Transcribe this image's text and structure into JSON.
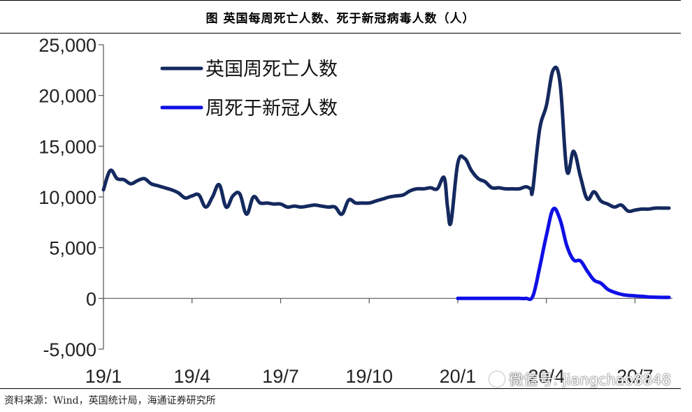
{
  "title": "图  英国每周死亡人数、死于新冠病毒人数（人）",
  "source": "资料来源：Wind，英国统计局，海通证券研究所",
  "watermark": "微信号: jiangchao8848",
  "chart_data": {
    "type": "line",
    "title": "图  英国每周死亡人数、死于新冠病毒人数（人）",
    "xlabel": "",
    "ylabel": "",
    "ylim": [
      -5000,
      25000
    ],
    "yticks": [
      -5000,
      0,
      5000,
      10000,
      15000,
      20000,
      25000
    ],
    "ytick_labels": [
      "-5,000",
      "0",
      "5,000",
      "10,000",
      "15,000",
      "20,000",
      "25,000"
    ],
    "xlim": [
      0,
      83.5
    ],
    "xticks": [
      0,
      13,
      26,
      39,
      52,
      65,
      78
    ],
    "xtick_labels": [
      "19/1",
      "19/4",
      "19/7",
      "19/10",
      "20/1",
      "20/4",
      "20/7"
    ],
    "x_unit": "weeks since 2019-01",
    "grid": false,
    "legend_position": "top-left",
    "series": [
      {
        "name": "英国周死亡人数",
        "color": "#14295e",
        "x": [
          0,
          1,
          2,
          3,
          4,
          5,
          6,
          7,
          8,
          9,
          10,
          11,
          12,
          13,
          14,
          15,
          16,
          17,
          18,
          19,
          20,
          21,
          22,
          23,
          24,
          25,
          26,
          27,
          28,
          29,
          30,
          31,
          32,
          33,
          34,
          35,
          36,
          37,
          38,
          39,
          40,
          41,
          42,
          43,
          44,
          45,
          46,
          47,
          48,
          49,
          50,
          50.5,
          51,
          52,
          53,
          54,
          55,
          56,
          57,
          58,
          59,
          60,
          61,
          62,
          62.7,
          63,
          64,
          65,
          66,
          67,
          68,
          69,
          70,
          71,
          72,
          73,
          74,
          75,
          76,
          77,
          78,
          79,
          80,
          81,
          82,
          83
        ],
        "values": [
          10700,
          12600,
          11800,
          11700,
          11300,
          11600,
          11800,
          11300,
          11100,
          10900,
          10700,
          10400,
          9900,
          10100,
          10200,
          9000,
          10000,
          11200,
          9000,
          10100,
          10300,
          8300,
          10000,
          9400,
          9400,
          9300,
          9300,
          9000,
          9100,
          9000,
          9100,
          9200,
          9100,
          9000,
          9000,
          8300,
          9700,
          9400,
          9400,
          9400,
          9600,
          9800,
          10000,
          10100,
          10200,
          10600,
          10800,
          10800,
          10900,
          10800,
          11900,
          9000,
          7500,
          13300,
          13800,
          12600,
          11800,
          11500,
          10900,
          10900,
          10800,
          10800,
          10800,
          11000,
          10800,
          10700,
          16600,
          19000,
          22500,
          21300,
          12600,
          14500,
          12000,
          9800,
          10500,
          9600,
          9300,
          9000,
          9200,
          8600,
          8700,
          8800,
          8800,
          8900,
          8900,
          8900
        ],
        "width": 5
      },
      {
        "name": "周死于新冠人数",
        "color": "#0f0fe6",
        "x": [
          52,
          53,
          54,
          55,
          56,
          57,
          58,
          59,
          60,
          61,
          62,
          63,
          64,
          65,
          66,
          67,
          68,
          69,
          70,
          71,
          72,
          73,
          74,
          75,
          76,
          77,
          78,
          79,
          80,
          81,
          82,
          83
        ],
        "values": [
          0,
          0,
          0,
          0,
          0,
          0,
          0,
          0,
          0,
          0,
          0,
          200,
          3000,
          6200,
          8800,
          7800,
          5200,
          3800,
          3700,
          2700,
          1800,
          1500,
          900,
          600,
          400,
          300,
          250,
          200,
          150,
          120,
          100,
          100
        ],
        "width": 5
      }
    ]
  }
}
